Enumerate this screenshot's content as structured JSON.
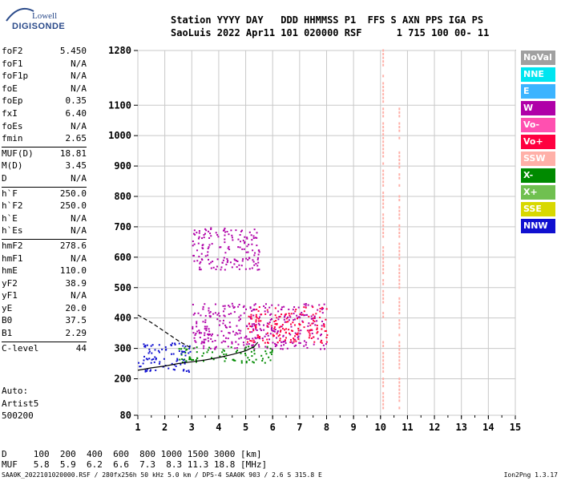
{
  "logo": {
    "line1": "Lowell",
    "line2": "DIGISONDE"
  },
  "header": {
    "line1": "Station YYYY DAY   DDD HHMMSS P1  FFS S AXN PPS IGA PS",
    "line2": "SaoLuis 2022 Apr11 101 020000 RSF      1 715 100 00- 11"
  },
  "params": [
    {
      "name": "foF2",
      "value": "5.450"
    },
    {
      "name": "foF1",
      "value": "N/A"
    },
    {
      "name": "foF1p",
      "value": "N/A"
    },
    {
      "name": "foE",
      "value": "N/A"
    },
    {
      "name": "foEp",
      "value": "0.35"
    },
    {
      "name": "fxI",
      "value": "6.40"
    },
    {
      "name": "foEs",
      "value": "N/A"
    },
    {
      "name": "fmin",
      "value": "2.65"
    },
    {
      "name": "MUF(D)",
      "value": "18.81",
      "sep": true
    },
    {
      "name": "M(D)",
      "value": "3.45"
    },
    {
      "name": "D",
      "value": "N/A"
    },
    {
      "name": "h`F",
      "value": "250.0",
      "sep": true
    },
    {
      "name": "h`F2",
      "value": "250.0"
    },
    {
      "name": "h`E",
      "value": "N/A"
    },
    {
      "name": "h`Es",
      "value": "N/A"
    },
    {
      "name": "hmF2",
      "value": "278.6",
      "sep": true
    },
    {
      "name": "hmF1",
      "value": "N/A"
    },
    {
      "name": "hmE",
      "value": "110.0"
    },
    {
      "name": "yF2",
      "value": "38.9"
    },
    {
      "name": "yF1",
      "value": "N/A"
    },
    {
      "name": "yE",
      "value": "20.0"
    },
    {
      "name": "B0",
      "value": "37.5"
    },
    {
      "name": "B1",
      "value": "2.29"
    },
    {
      "name": "C-level",
      "value": "44",
      "sep": true
    }
  ],
  "auto": {
    "line1": "Auto:",
    "line2": "Artist5",
    "line3": "500200"
  },
  "legend": [
    {
      "label": "NoVal",
      "color": "#a0a0a0"
    },
    {
      "label": "NNE",
      "color": "#00e5f0"
    },
    {
      "label": "E",
      "color": "#3cb4ff"
    },
    {
      "label": "W",
      "color": "#b000a8"
    },
    {
      "label": "Vo-",
      "color": "#ff50b0"
    },
    {
      "label": "Vo+",
      "color": "#ff0040"
    },
    {
      "label": "SSW",
      "color": "#ffb0a8"
    },
    {
      "label": "X-",
      "color": "#008a00"
    },
    {
      "label": "X+",
      "color": "#70c050"
    },
    {
      "label": "SSE",
      "color": "#d8d800"
    },
    {
      "label": "NNW",
      "color": "#1010d0"
    }
  ],
  "distance_table": {
    "line1": "D     100  200  400  600  800 1000 1500 3000 [km]",
    "line2": "MUF   5.8  5.9  6.2  6.6  7.3  8.3 11.3 18.8 [MHz]"
  },
  "footer": {
    "left": "SAA0K_2022101020000.RSF / 280fx256h 50 kHz 5.0 km / DPS-4 SAA0K 903 / 2.6 S 315.8 E",
    "right": "Ion2Png 1.3.17"
  },
  "chart_data": {
    "type": "scatter",
    "xlim": [
      1,
      15
    ],
    "ylim": [
      80,
      1280
    ],
    "x_ticks": [
      1,
      2,
      3,
      4,
      5,
      6,
      7,
      8,
      9,
      10,
      11,
      12,
      13,
      14,
      15
    ],
    "y_ticks": [
      80,
      200,
      300,
      400,
      500,
      600,
      700,
      800,
      900,
      1000,
      1100,
      1280
    ],
    "grid": true,
    "legend_position": "right",
    "traces": [
      {
        "name": "fitted O-trace",
        "style": "solid",
        "color": "#000000",
        "x": [
          1.0,
          1.5,
          2.0,
          2.5,
          3.0,
          3.5,
          4.0,
          4.5,
          5.0,
          5.3,
          5.45
        ],
        "y": [
          228,
          236,
          242,
          250,
          256,
          262,
          270,
          280,
          292,
          305,
          320
        ]
      },
      {
        "name": "fitted X-trace",
        "style": "dashed",
        "color": "#000000",
        "x": [
          1.0,
          1.5,
          2.0,
          2.5,
          3.0
        ],
        "y": [
          410,
          385,
          355,
          325,
          300
        ]
      }
    ],
    "echo_regions": [
      {
        "color": "#b000a8",
        "x": [
          3.0,
          8.0
        ],
        "y": [
          300,
          450
        ]
      },
      {
        "color": "#b000a8",
        "x": [
          3.0,
          5.5
        ],
        "y": [
          560,
          700
        ]
      },
      {
        "color": "#008a00",
        "x": [
          2.5,
          6.0
        ],
        "y": [
          255,
          310
        ]
      },
      {
        "color": "#ff0040",
        "x": [
          5.0,
          8.0
        ],
        "y": [
          320,
          440
        ]
      },
      {
        "color": "#1010d0",
        "x": [
          1.0,
          3.0
        ],
        "y": [
          225,
          320
        ]
      }
    ],
    "vertical_streaks": [
      {
        "x": 10.1,
        "color": "#ffb0a8",
        "y": [
          100,
          1280
        ]
      },
      {
        "x": 10.7,
        "color": "#ffb0a8",
        "y": [
          100,
          1100
        ]
      }
    ]
  }
}
